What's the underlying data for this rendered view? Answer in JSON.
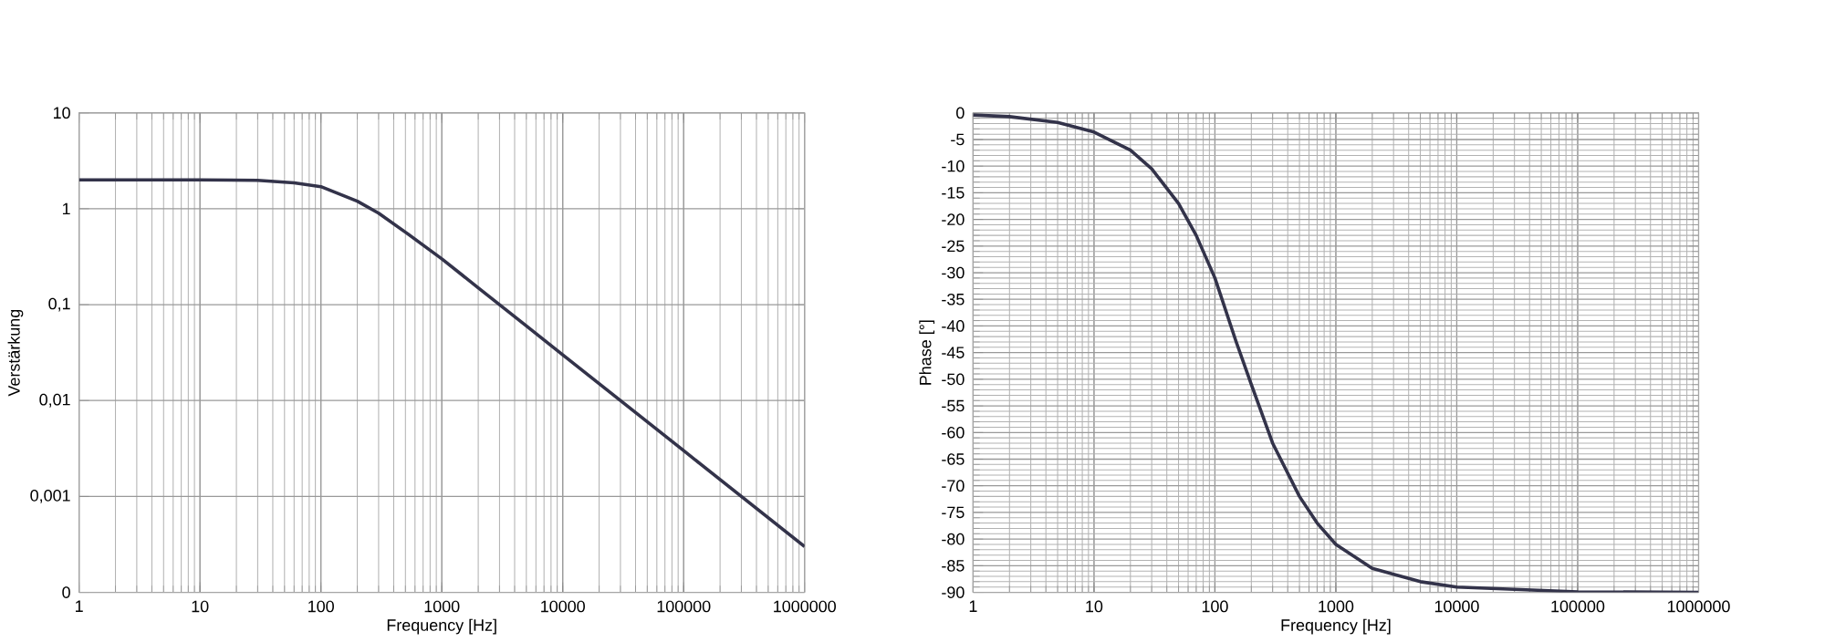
{
  "chart_data": [
    {
      "type": "line",
      "xlabel": "Frequency [Hz]",
      "ylabel": "Verstärkung",
      "log": "xy",
      "grid": true,
      "marker": "none",
      "line_style": "solid",
      "xlim": [
        1,
        1000000
      ],
      "ylim": [
        0.0001,
        10
      ],
      "xticks": [
        1,
        10,
        100,
        1000,
        10000,
        100000,
        1000000
      ],
      "yticks": [
        10,
        1,
        {
          "value": 0.1,
          "label": "0,1"
        },
        {
          "value": 0.01,
          "label": "0,01"
        },
        {
          "value": 0.001,
          "label": "0,001"
        },
        {
          "value": 0.0001,
          "label": "0"
        }
      ],
      "series": [
        {
          "color": "#33334a",
          "x": [
            1,
            10,
            30,
            60,
            100,
            200,
            300,
            500,
            1000,
            2000,
            5000,
            10000,
            100000,
            1000000
          ],
          "values": [
            2,
            2,
            1.98,
            1.86,
            1.7,
            1.2,
            0.9,
            0.57,
            0.3,
            0.15,
            0.06,
            0.03,
            0.003,
            0.0003
          ]
        }
      ]
    },
    {
      "type": "line",
      "xlabel": "Frequency [Hz]",
      "ylabel": "Phase [°]",
      "log": "x",
      "grid": true,
      "marker": "none",
      "line_style": "solid",
      "xlim": [
        1,
        1000000
      ],
      "ylim": [
        -90,
        0
      ],
      "xticks": [
        1,
        10,
        100,
        1000,
        10000,
        100000,
        1000000
      ],
      "yticks": [
        0,
        -5,
        -10,
        -15,
        -20,
        -25,
        -30,
        -35,
        -40,
        -45,
        -50,
        -55,
        -60,
        -65,
        -70,
        -75,
        -80,
        -85,
        -90
      ],
      "series": [
        {
          "color": "#33334a",
          "x": [
            1,
            2,
            5,
            10,
            20,
            30,
            50,
            70,
            100,
            150,
            200,
            300,
            500,
            700,
            1000,
            2000,
            5000,
            10000,
            100000,
            1000000
          ],
          "values": [
            -0.4,
            -0.7,
            -1.8,
            -3.6,
            -7,
            -10.5,
            -17,
            -23,
            -31,
            -43,
            -51,
            -62,
            -72,
            -77,
            -81,
            -85.5,
            -88,
            -89,
            -89.9,
            -90
          ]
        }
      ]
    }
  ]
}
